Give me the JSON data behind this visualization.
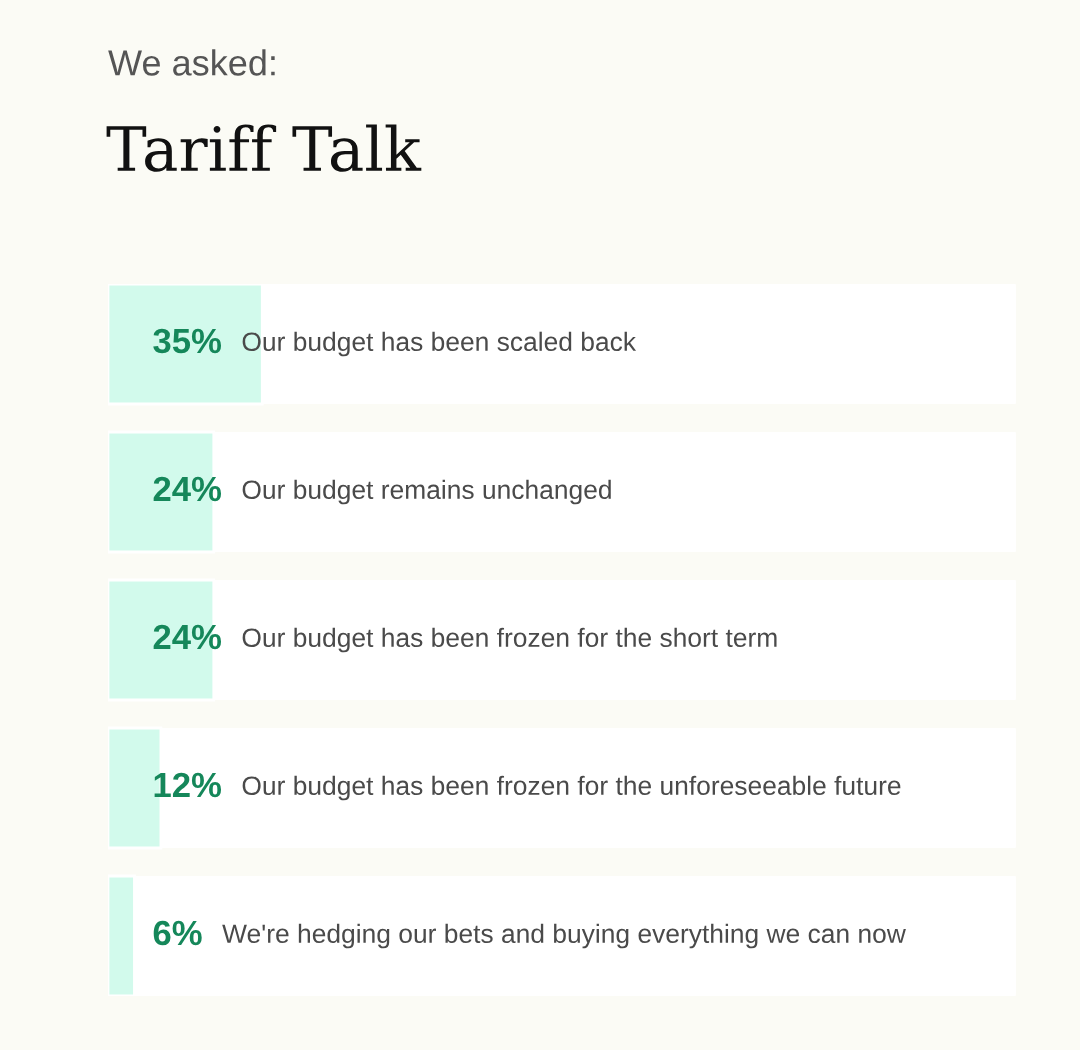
{
  "chart_data": {
    "type": "bar",
    "orientation": "horizontal",
    "subtitle": "We asked:",
    "title": "Tariff Talk",
    "categories": [
      "Our budget has been scaled back",
      "Our budget remains unchanged",
      "Our budget has been frozen for the short term",
      "Our budget has been frozen for the unforeseeable future",
      "We're hedging our bets and buying everything we can now"
    ],
    "values": [
      35,
      24,
      24,
      12,
      6
    ],
    "value_labels": [
      "35%",
      "24%",
      "24%",
      "12%",
      "6%"
    ],
    "color": "#d2faec",
    "xlim": [
      0,
      206
    ]
  }
}
